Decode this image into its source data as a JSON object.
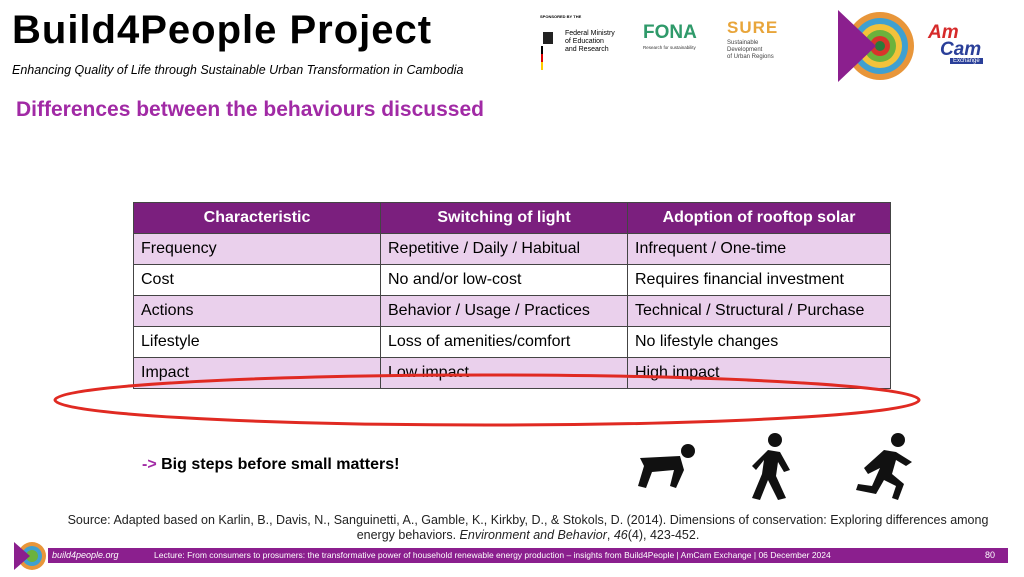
{
  "header": {
    "title": "Build4People Project",
    "subtitle": "Enhancing Quality of Life through Sustainable Urban Transformation in Cambodia"
  },
  "logos": {
    "sponsor_caption": "SPONSORED BY THE",
    "ministry": [
      "Federal Ministry",
      "of Education",
      "and Research"
    ],
    "fona": "FONA",
    "fona_caption": "Research for sustainability",
    "sure": "SURE",
    "sure_caption": [
      "Sustainable",
      "Development",
      "of Urban Regions"
    ],
    "amcam": [
      "Am",
      "Cam"
    ],
    "amcam_caption": "Exchange"
  },
  "slide_title": "Differences between the behaviours discussed",
  "table": {
    "header": [
      "Characteristic",
      "Switching of light",
      "Adoption of rooftop solar"
    ],
    "rows": [
      [
        "Frequency",
        "Repetitive / Daily / Habitual",
        "Infrequent / One-time"
      ],
      [
        "Cost",
        "No and/or low-cost",
        "Requires financial investment"
      ],
      [
        "Actions",
        "Behavior / Usage / Practices",
        "Technical / Structural / Purchase"
      ],
      [
        "Lifestyle",
        "Loss of amenities/comfort",
        "No lifestyle changes"
      ],
      [
        "Impact",
        "Low impact",
        "High impact"
      ]
    ]
  },
  "note": {
    "arrow": "->",
    "text": "Big steps before small matters!"
  },
  "source": {
    "text": "Source: Adapted based on Karlin, B., Davis, N., Sanguinetti, A., Gamble, K., Kirkby, D., & Stokols, D. (2014). Dimensions of conservation: Exploring differences among energy behaviors.",
    "journal": "Environment and Behavior",
    "sep": ",",
    "volume": "46",
    "pages": "(4), 423-452."
  },
  "footer": {
    "site": "build4people.org",
    "lecture": "Lecture: From consumers to prosumers: the transformative power of household renewable energy production – insights from Build4People | AmCam Exchange | 06 December 2024",
    "page": "80"
  }
}
